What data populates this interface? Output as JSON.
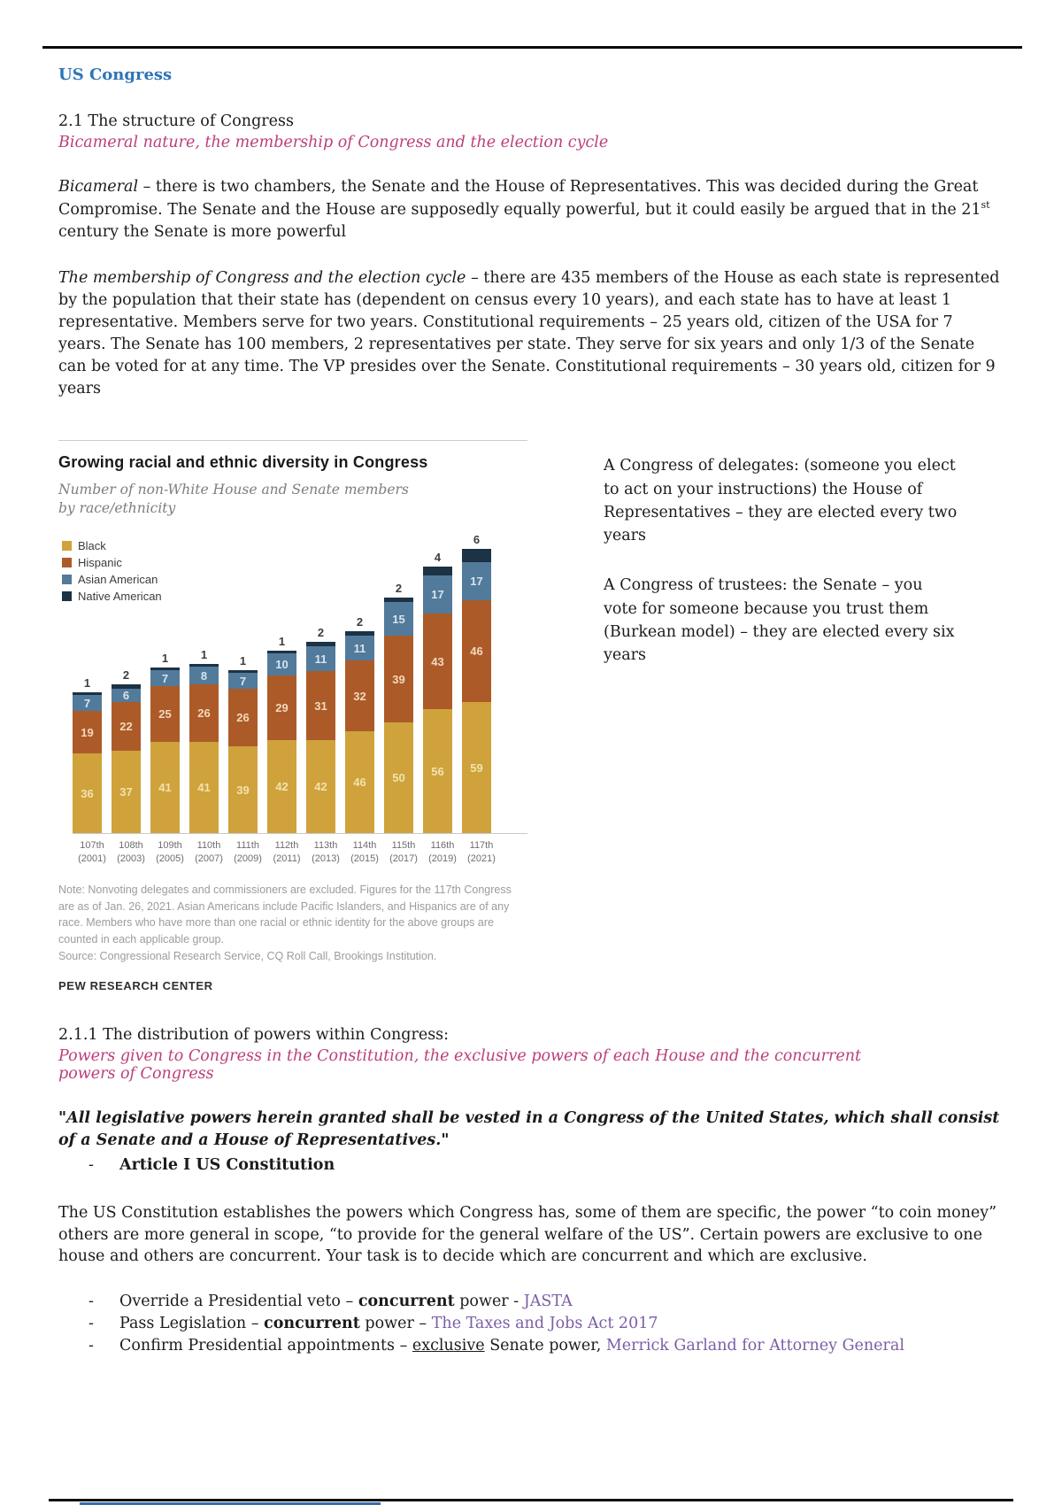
{
  "doc": {
    "title": "US Congress",
    "colors": {
      "heading_blue": "#2e75b6",
      "accent_pink": "#bc3e7c",
      "link_purple": "#7b5ea6"
    },
    "section1": {
      "heading": "2.1 The structure of Congress",
      "subheading": "Bicameral nature, the membership of Congress and the election cycle",
      "para1_lead": "Bicameral",
      "para1_a": " – there is two chambers, the Senate and the House of Representatives. This was decided during the Great Compromise. The Senate and the House are supposedly equally powerful, but it could easily be argued that in the 21",
      "para1_sup": "st",
      "para1_b": " century the Senate is more powerful",
      "para2_lead": "The membership of Congress and the election cycle",
      "para2_rest": " – there are 435 members of the House as each state is represented by the population that their state has (dependent on census every 10 years), and each state has to have at least 1 representative. Members serve for two years. Constitutional requirements – 25 years old, citizen of the USA for 7 years. The Senate has 100 members, 2 representatives per state. They serve for six years and only 1/3 of the Senate can be voted for at any time. The VP presides over the Senate. Constitutional requirements – 30 years old, citizen for 9 years"
    },
    "right_col": {
      "para1": "A Congress of delegates: (someone you elect to act on your instructions) the House of Representatives – they are elected every two years",
      "para2": "A Congress of trustees: the Senate – you vote for someone because you trust them (Burkean model) – they are elected every six years"
    },
    "section2": {
      "heading": "2.1.1 The distribution of powers within Congress:",
      "subheading": "Powers given to Congress in the Constitution, the exclusive powers of each House and the concurrent powers of Congress",
      "quote": "\"All legislative powers herein granted shall be vested in a Congress of the United States, which shall consist of a Senate and a House of Representatives.\"",
      "attribution": "Article I US Constitution",
      "para": "The US Constitution establishes the powers which Congress has, some of them are specific, the power “to coin money” others are more general in scope, “to provide for the general welfare of the US”. Certain powers are exclusive to one house and others are concurrent. Your task is to decide which are concurrent and which are exclusive.",
      "bullets": [
        {
          "pre": "Override a Presidential veto – ",
          "emph": "concurrent",
          "mid": " power - ",
          "link": "JASTA"
        },
        {
          "pre": "Pass Legislation – ",
          "emph": "concurrent",
          "mid": " power – ",
          "link": "The Taxes and Jobs Act 2017"
        },
        {
          "pre": "Confirm Presidential appointments – ",
          "emph": "exclusive",
          "mid": " Senate power, ",
          "link": "Merrick Garland for Attorney General"
        }
      ]
    }
  },
  "chart_data": {
    "type": "bar",
    "stacked": true,
    "title": "Growing racial and ethnic diversity in Congress",
    "subtitle_line1": "Number of non-White House and Senate members",
    "subtitle_line2": "by race/ethnicity",
    "legend_position": "top-left",
    "grid": false,
    "ylim": [
      0,
      135
    ],
    "categories": [
      "107th",
      "108th",
      "109th",
      "110th",
      "111th",
      "112th",
      "113th",
      "114th",
      "115th",
      "116th",
      "117th"
    ],
    "category_years": [
      "(2001)",
      "(2003)",
      "(2005)",
      "(2007)",
      "(2009)",
      "(2011)",
      "(2013)",
      "(2015)",
      "(2017)",
      "(2019)",
      "(2021)"
    ],
    "series": [
      {
        "name": "Black",
        "color": "#cfa23c",
        "label_color": "#f3e3ac",
        "values": [
          36,
          37,
          41,
          41,
          39,
          42,
          42,
          46,
          50,
          56,
          59
        ]
      },
      {
        "name": "Hispanic",
        "color": "#ac5b28",
        "label_color": "#f3d9bc",
        "values": [
          19,
          22,
          25,
          26,
          26,
          29,
          31,
          32,
          39,
          43,
          46
        ]
      },
      {
        "name": "Asian American",
        "color": "#527a9b",
        "label_color": "#d6e4ee",
        "values": [
          7,
          6,
          7,
          8,
          7,
          10,
          11,
          11,
          15,
          17,
          17
        ]
      },
      {
        "name": "Native American",
        "color": "#1c3245",
        "label_color": "#3d3d3d",
        "label_outside": true,
        "values": [
          1,
          2,
          1,
          1,
          1,
          1,
          2,
          2,
          2,
          4,
          6
        ]
      }
    ],
    "note": "Note: Nonvoting delegates and commissioners are excluded. Figures for the 117th Congress are as of Jan. 26, 2021. Asian Americans include Pacific Islanders, and Hispanics are of any race. Members who have more than one racial or ethnic identity for the above groups are counted in each applicable group.",
    "source": "Source: Congressional Research Service, CQ Roll Call, Brookings Institution.",
    "brand": "PEW RESEARCH CENTER"
  }
}
